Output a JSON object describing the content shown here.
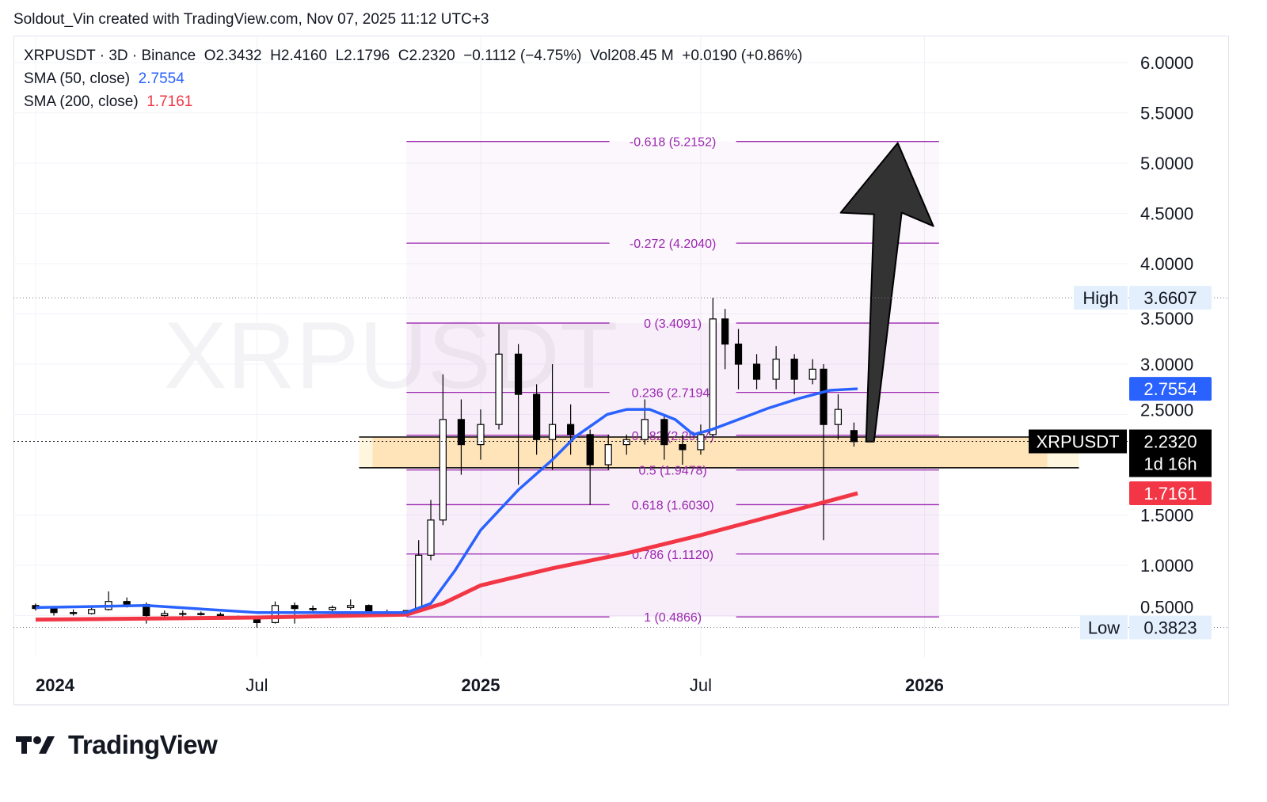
{
  "credit": "Soldout_Vin created with TradingView.com, Nov 07, 2025 11:12 UTC+3",
  "legend": {
    "symbol_line": "XRPUSDT · 3D · Binance  O2.3432  H2.4160  L2.1796  C2.2320  −0.1112 (−4.75%)  Vol208.45 M  +0.0190 (+0.86%)",
    "sma50_label": "SMA (50, close)",
    "sma50_value": "2.7554",
    "sma200_label": "SMA (200, close)",
    "sma200_value": "1.7161"
  },
  "watermark": "XRPUSDT",
  "logo": "TradingView",
  "colors": {
    "sma50": "#2962ff",
    "sma200": "#f23645",
    "fib": "#9c27b0",
    "zone": "#ffe0b2",
    "arrow": "#333333"
  },
  "chart_data": {
    "type": "candlestick",
    "symbol": "XRPUSDT",
    "interval": "3D",
    "exchange": "Binance",
    "y_scale": "linear",
    "ylim": [
      0.1,
      6.3
    ],
    "y_ticks": [
      "6.0000",
      "5.5000",
      "5.0000",
      "4.5000",
      "4.0000",
      "3.5000",
      "3.0000",
      "2.5000",
      "1.5000",
      "1.0000",
      "0.5000"
    ],
    "x_ticks": [
      {
        "label": "2024",
        "date": "2024-01-01",
        "bold": true
      },
      {
        "label": "Jul",
        "date": "2024-07-01"
      },
      {
        "label": "2025",
        "date": "2025-01-01",
        "bold": true
      },
      {
        "label": "Jul",
        "date": "2025-07-01"
      },
      {
        "label": "2026",
        "date": "2026-01-01",
        "bold": true
      }
    ],
    "candles": [
      [
        "2024-01-01",
        0.6,
        0.62,
        0.55,
        0.57
      ],
      [
        "2024-01-16",
        0.57,
        0.58,
        0.5,
        0.53
      ],
      [
        "2024-02-01",
        0.53,
        0.56,
        0.5,
        0.52
      ],
      [
        "2024-02-16",
        0.52,
        0.58,
        0.51,
        0.56
      ],
      [
        "2024-03-01",
        0.56,
        0.74,
        0.55,
        0.64
      ],
      [
        "2024-03-16",
        0.64,
        0.68,
        0.58,
        0.61
      ],
      [
        "2024-04-01",
        0.61,
        0.63,
        0.42,
        0.5
      ],
      [
        "2024-04-16",
        0.5,
        0.55,
        0.48,
        0.52
      ],
      [
        "2024-05-01",
        0.52,
        0.55,
        0.49,
        0.52
      ],
      [
        "2024-05-16",
        0.52,
        0.54,
        0.5,
        0.51
      ],
      [
        "2024-06-01",
        0.51,
        0.53,
        0.46,
        0.48
      ],
      [
        "2024-06-16",
        0.48,
        0.5,
        0.46,
        0.47
      ],
      [
        "2024-07-01",
        0.47,
        0.48,
        0.38,
        0.43
      ],
      [
        "2024-07-16",
        0.43,
        0.64,
        0.42,
        0.6
      ],
      [
        "2024-08-01",
        0.6,
        0.63,
        0.42,
        0.57
      ],
      [
        "2024-08-16",
        0.57,
        0.6,
        0.54,
        0.56
      ],
      [
        "2024-09-01",
        0.56,
        0.6,
        0.52,
        0.58
      ],
      [
        "2024-09-16",
        0.58,
        0.66,
        0.56,
        0.6
      ],
      [
        "2024-10-01",
        0.6,
        0.61,
        0.5,
        0.53
      ],
      [
        "2024-10-16",
        0.53,
        0.56,
        0.51,
        0.52
      ],
      [
        "2024-11-01",
        0.52,
        0.55,
        0.5,
        0.55
      ],
      [
        "2024-11-11",
        0.55,
        1.25,
        0.54,
        1.1
      ],
      [
        "2024-11-21",
        1.1,
        1.65,
        1.05,
        1.45
      ],
      [
        "2024-12-01",
        1.45,
        2.9,
        1.4,
        2.45
      ],
      [
        "2024-12-16",
        2.45,
        2.65,
        1.9,
        2.2
      ],
      [
        "2025-01-01",
        2.2,
        2.55,
        2.05,
        2.4
      ],
      [
        "2025-01-16",
        2.4,
        3.4,
        2.35,
        3.1
      ],
      [
        "2025-02-01",
        3.1,
        3.2,
        1.8,
        2.7
      ],
      [
        "2025-02-16",
        2.7,
        2.8,
        2.1,
        2.25
      ],
      [
        "2025-03-01",
        2.25,
        3.0,
        1.95,
        2.4
      ],
      [
        "2025-03-16",
        2.4,
        2.6,
        2.1,
        2.3
      ],
      [
        "2025-04-01",
        2.3,
        2.35,
        1.6,
        2.0
      ],
      [
        "2025-04-16",
        2.0,
        2.3,
        1.95,
        2.2
      ],
      [
        "2025-05-01",
        2.2,
        2.3,
        2.1,
        2.25
      ],
      [
        "2025-05-16",
        2.25,
        2.65,
        2.2,
        2.45
      ],
      [
        "2025-06-01",
        2.45,
        2.5,
        2.05,
        2.2
      ],
      [
        "2025-06-16",
        2.2,
        2.3,
        2.0,
        2.15
      ],
      [
        "2025-07-01",
        2.15,
        2.4,
        2.1,
        2.3
      ],
      [
        "2025-07-11",
        2.3,
        3.66,
        2.28,
        3.45
      ],
      [
        "2025-07-21",
        3.45,
        3.55,
        2.95,
        3.2
      ],
      [
        "2025-08-01",
        3.2,
        3.35,
        2.75,
        3.0
      ],
      [
        "2025-08-16",
        3.0,
        3.1,
        2.75,
        2.85
      ],
      [
        "2025-09-01",
        2.85,
        3.18,
        2.75,
        3.05
      ],
      [
        "2025-09-16",
        3.05,
        3.1,
        2.7,
        2.85
      ],
      [
        "2025-10-01",
        2.85,
        3.05,
        2.8,
        2.95
      ],
      [
        "2025-10-10",
        2.95,
        3.0,
        1.25,
        2.4
      ],
      [
        "2025-10-22",
        2.4,
        2.7,
        2.25,
        2.55
      ],
      [
        "2025-11-04",
        2.34,
        2.42,
        2.18,
        2.23
      ]
    ],
    "sma50": [
      [
        "2024-01-01",
        0.58
      ],
      [
        "2024-04-01",
        0.6
      ],
      [
        "2024-07-01",
        0.53
      ],
      [
        "2024-11-01",
        0.53
      ],
      [
        "2024-11-21",
        0.62
      ],
      [
        "2024-12-11",
        0.95
      ],
      [
        "2025-01-01",
        1.35
      ],
      [
        "2025-02-01",
        1.75
      ],
      [
        "2025-03-01",
        2.05
      ],
      [
        "2025-03-20",
        2.28
      ],
      [
        "2025-04-15",
        2.5
      ],
      [
        "2025-05-01",
        2.55
      ],
      [
        "2025-05-20",
        2.55
      ],
      [
        "2025-06-10",
        2.45
      ],
      [
        "2025-06-25",
        2.3
      ],
      [
        "2025-07-10",
        2.35
      ],
      [
        "2025-08-01",
        2.45
      ],
      [
        "2025-08-25",
        2.56
      ],
      [
        "2025-09-20",
        2.66
      ],
      [
        "2025-10-15",
        2.74
      ],
      [
        "2025-11-07",
        2.7554
      ]
    ],
    "sma200": [
      [
        "2024-01-01",
        0.46
      ],
      [
        "2024-07-01",
        0.48
      ],
      [
        "2024-11-01",
        0.51
      ],
      [
        "2024-12-01",
        0.62
      ],
      [
        "2025-01-01",
        0.8
      ],
      [
        "2025-03-01",
        0.97
      ],
      [
        "2025-05-01",
        1.12
      ],
      [
        "2025-07-01",
        1.3
      ],
      [
        "2025-09-01",
        1.5
      ],
      [
        "2025-11-07",
        1.7161
      ]
    ],
    "fib_retracement": {
      "start_date": "2024-11-01",
      "end_date": "2026-01-13",
      "levels": [
        {
          "ratio": "-0.618",
          "price": "5.2152"
        },
        {
          "ratio": "-0.272",
          "price": "4.2040"
        },
        {
          "ratio": "0",
          "price": "3.4091"
        },
        {
          "ratio": "0.236",
          "price": "2.7194"
        },
        {
          "ratio": "0.382",
          "price": "2.2927"
        },
        {
          "ratio": "0.5",
          "price": "1.9478"
        },
        {
          "ratio": "0.618",
          "price": "1.6030"
        },
        {
          "ratio": "0.786",
          "price": "1.1120"
        },
        {
          "ratio": "1",
          "price": "0.4866"
        }
      ]
    },
    "support_zone": {
      "top": 2.276,
      "bottom": 1.969,
      "start_date": "2024-09-23",
      "end_date": "2026-05-08"
    },
    "arrow": {
      "from_date": "2025-11-14",
      "from_price": 2.23,
      "to_date": "2025-12-10",
      "to_price": 5.2
    },
    "markers": {
      "high_label": "High",
      "high": "3.6607",
      "low_label": "Low",
      "low": "0.3823",
      "sma50_tag": "2.7554",
      "price_symbol": "XRPUSDT",
      "price": "2.2320",
      "countdown": "1d 16h",
      "sma200_tag": "1.7161"
    }
  }
}
